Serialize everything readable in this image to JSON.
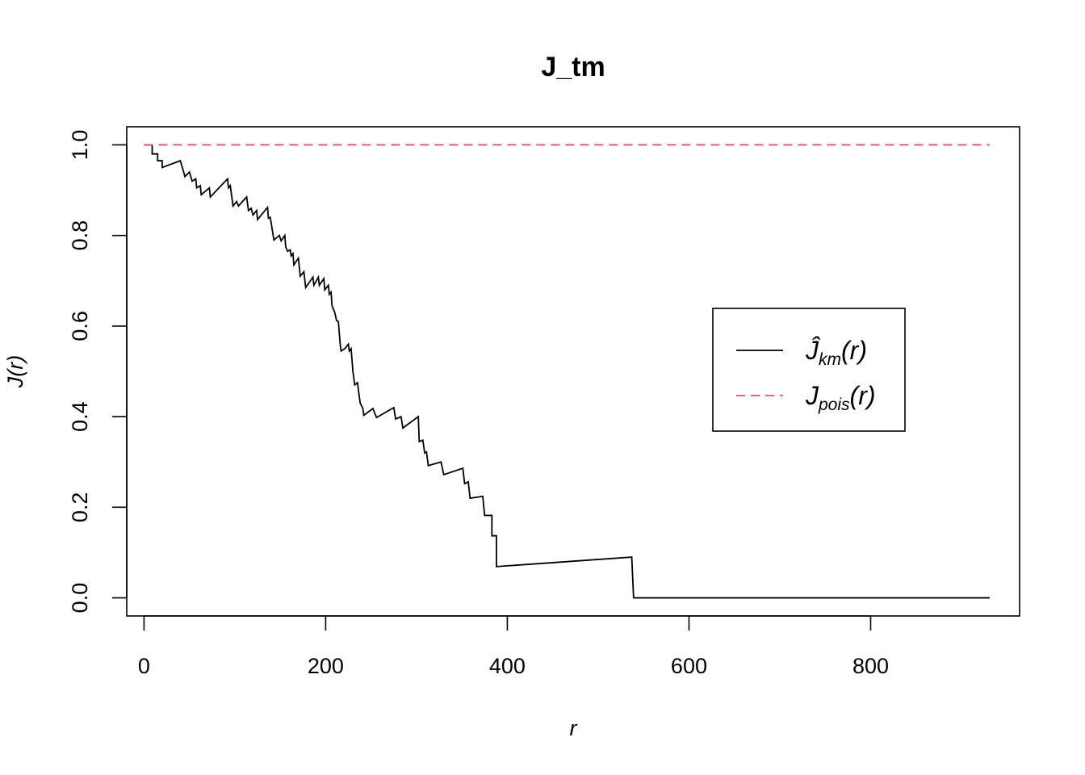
{
  "chart_data": {
    "type": "line",
    "title": "J_tm",
    "xlabel": "r",
    "ylabel": "J(r)",
    "xlim": [
      -19,
      964
    ],
    "ylim": [
      -0.04,
      1.04
    ],
    "x_ticks": [
      0,
      200,
      400,
      600,
      800
    ],
    "x_tick_labels": [
      "0",
      "200",
      "400",
      "600",
      "800"
    ],
    "y_ticks": [
      0,
      0.2,
      0.4,
      0.6,
      0.8,
      1.0
    ],
    "y_tick_labels": [
      "0.0",
      "0.2",
      "0.4",
      "0.6",
      "0.8",
      "1.0"
    ],
    "grid": false,
    "legend_position": "right",
    "series": [
      {
        "name": "Ĵkm(r)",
        "legend_main": "Ĵ",
        "legend_sub": "km",
        "legend_tail": "(r)",
        "color": "#000000",
        "dash": "solid",
        "points": [
          [
            0,
            1.0
          ],
          [
            9,
            1.0
          ],
          [
            9,
            0.98
          ],
          [
            15,
            0.98
          ],
          [
            15,
            0.965
          ],
          [
            20,
            0.965
          ],
          [
            20,
            0.95
          ],
          [
            40,
            0.965
          ],
          [
            43,
            0.945
          ],
          [
            45,
            0.93
          ],
          [
            50,
            0.94
          ],
          [
            53,
            0.92
          ],
          [
            57,
            0.925
          ],
          [
            58,
            0.905
          ],
          [
            62,
            0.91
          ],
          [
            63,
            0.89
          ],
          [
            72,
            0.905
          ],
          [
            73,
            0.885
          ],
          [
            92,
            0.925
          ],
          [
            93,
            0.905
          ],
          [
            95,
            0.91
          ],
          [
            98,
            0.865
          ],
          [
            102,
            0.875
          ],
          [
            104,
            0.865
          ],
          [
            113,
            0.885
          ],
          [
            115,
            0.855
          ],
          [
            118,
            0.86
          ],
          [
            120,
            0.845
          ],
          [
            124,
            0.855
          ],
          [
            125,
            0.835
          ],
          [
            136,
            0.862
          ],
          [
            137,
            0.838
          ],
          [
            139,
            0.84
          ],
          [
            143,
            0.79
          ],
          [
            149,
            0.8
          ],
          [
            151,
            0.788
          ],
          [
            155,
            0.8
          ],
          [
            156,
            0.775
          ],
          [
            158,
            0.765
          ],
          [
            161,
            0.768
          ],
          [
            162,
            0.755
          ],
          [
            164,
            0.76
          ],
          [
            165,
            0.735
          ],
          [
            170,
            0.75
          ],
          [
            172,
            0.71
          ],
          [
            176,
            0.72
          ],
          [
            178,
            0.685
          ],
          [
            186,
            0.708
          ],
          [
            187,
            0.69
          ],
          [
            192,
            0.708
          ],
          [
            193,
            0.69
          ],
          [
            198,
            0.705
          ],
          [
            199,
            0.68
          ],
          [
            203,
            0.69
          ],
          [
            204,
            0.67
          ],
          [
            206,
            0.675
          ],
          [
            207,
            0.645
          ],
          [
            210,
            0.63
          ],
          [
            212,
            0.612
          ],
          [
            214,
            0.61
          ],
          [
            216,
            0.56
          ],
          [
            217,
            0.545
          ],
          [
            221,
            0.55
          ],
          [
            225,
            0.56
          ],
          [
            226,
            0.545
          ],
          [
            228,
            0.55
          ],
          [
            230,
            0.5
          ],
          [
            232,
            0.47
          ],
          [
            235,
            0.475
          ],
          [
            238,
            0.43
          ],
          [
            241,
            0.418
          ],
          [
            242,
            0.403
          ],
          [
            252,
            0.418
          ],
          [
            256,
            0.398
          ],
          [
            275,
            0.42
          ],
          [
            277,
            0.395
          ],
          [
            283,
            0.4
          ],
          [
            285,
            0.375
          ],
          [
            302,
            0.4
          ],
          [
            303,
            0.345
          ],
          [
            307,
            0.348
          ],
          [
            309,
            0.32
          ],
          [
            311,
            0.322
          ],
          [
            313,
            0.292
          ],
          [
            327,
            0.3
          ],
          [
            330,
            0.272
          ],
          [
            351,
            0.286
          ],
          [
            353,
            0.252
          ],
          [
            357,
            0.256
          ],
          [
            359,
            0.22
          ],
          [
            373,
            0.224
          ],
          [
            375,
            0.182
          ],
          [
            383,
            0.182
          ],
          [
            383,
            0.137
          ],
          [
            388,
            0.137
          ],
          [
            388,
            0.069
          ],
          [
            537,
            0.09
          ],
          [
            539,
            0.0
          ],
          [
            931,
            0.0
          ]
        ]
      },
      {
        "name": "Jpois(r)",
        "legend_main": "J",
        "legend_sub": "pois",
        "legend_tail": "(r)",
        "color": "#DF536B",
        "dash": "dashed",
        "points": [
          [
            0,
            1.0
          ],
          [
            931,
            1.0
          ]
        ]
      }
    ]
  }
}
